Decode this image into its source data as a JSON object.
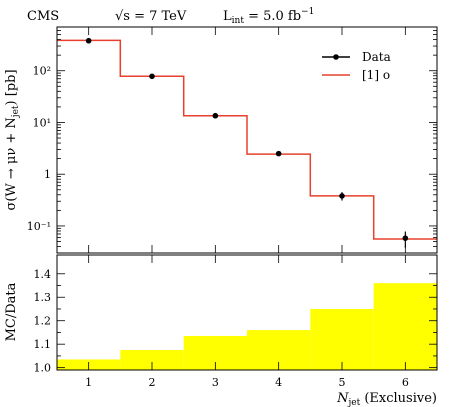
{
  "chart_data": [
    {
      "type": "line",
      "title_left": "CMS",
      "title_mid": "√s = 7 TeV",
      "title_right": "L",
      "title_right_sub": "int",
      "title_right_tail": " = 5.0 fb",
      "title_right_sup": "−1",
      "ylabel": "σ(W → μν + N_jet) [pb]",
      "y_scale": "log",
      "ylim": [
        0.03,
        700
      ],
      "xlim": [
        0.5,
        6.5
      ],
      "grid": false,
      "legend_position": "top-right",
      "ytick_labels": [
        "10²",
        "10¹",
        "1",
        "10⁻¹"
      ],
      "ytick_values": [
        100,
        10,
        1,
        0.1
      ],
      "series": [
        {
          "name": "Data",
          "style": "points-with-errors",
          "color": "#000000",
          "x": [
            1,
            2,
            3,
            4,
            5,
            6
          ],
          "y": [
            380,
            78,
            13.5,
            2.5,
            0.38,
            0.058
          ],
          "yerr_low": [
            5,
            1.5,
            0.4,
            0.12,
            0.07,
            0.02
          ],
          "yerr_high": [
            5,
            1.5,
            0.4,
            0.12,
            0.07,
            0.02
          ]
        },
        {
          "name": "[1] o",
          "style": "step",
          "color": "#e8402c",
          "bin_edges": [
            0.5,
            1.5,
            2.5,
            3.5,
            4.5,
            5.5,
            6.5
          ],
          "values": [
            385,
            78,
            13.5,
            2.45,
            0.38,
            0.056
          ]
        }
      ]
    },
    {
      "type": "bar",
      "ylabel": "MC/Data",
      "xlabel": "N_jet (Exclusive)",
      "ylim": [
        0.99,
        1.48
      ],
      "xlim": [
        0.5,
        6.5
      ],
      "xtick_labels": [
        "1",
        "2",
        "3",
        "4",
        "5",
        "6"
      ],
      "ytick_labels": [
        "1.0",
        "1.1",
        "1.2",
        "1.3",
        "1.4"
      ],
      "ytick_values": [
        1.0,
        1.1,
        1.2,
        1.3,
        1.4
      ],
      "fill_color": "#ffff00",
      "bin_edges": [
        0.5,
        1.5,
        2.5,
        3.5,
        4.5,
        5.5,
        6.5
      ],
      "values": [
        1.035,
        1.075,
        1.135,
        1.16,
        1.25,
        1.36
      ]
    }
  ]
}
